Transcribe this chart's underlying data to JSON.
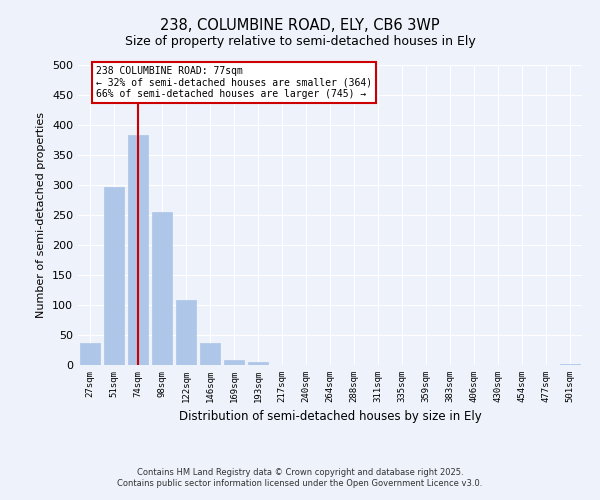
{
  "title1": "238, COLUMBINE ROAD, ELY, CB6 3WP",
  "title2": "Size of property relative to semi-detached houses in Ely",
  "xlabel": "Distribution of semi-detached houses by size in Ely",
  "ylabel": "Number of semi-detached properties",
  "bar_labels": [
    "27sqm",
    "51sqm",
    "74sqm",
    "98sqm",
    "122sqm",
    "146sqm",
    "169sqm",
    "193sqm",
    "217sqm",
    "240sqm",
    "264sqm",
    "288sqm",
    "311sqm",
    "335sqm",
    "359sqm",
    "383sqm",
    "406sqm",
    "430sqm",
    "454sqm",
    "477sqm",
    "501sqm"
  ],
  "bar_values": [
    36,
    296,
    384,
    255,
    108,
    36,
    9,
    5,
    0,
    0,
    0,
    0,
    0,
    0,
    0,
    0,
    0,
    0,
    0,
    0,
    2
  ],
  "bar_color": "#aec6e8",
  "bar_edge_color": "#aec6e8",
  "background_color": "#eef2fa",
  "grid_color": "#ffffff",
  "vline_x": 2.0,
  "vline_color": "#cc0000",
  "annotation_title": "238 COLUMBINE ROAD: 77sqm",
  "annotation_line1": "← 32% of semi-detached houses are smaller (364)",
  "annotation_line2": "66% of semi-detached houses are larger (745) →",
  "annotation_box_color": "#ffffff",
  "annotation_box_edge": "#cc0000",
  "footnote1": "Contains HM Land Registry data © Crown copyright and database right 2025.",
  "footnote2": "Contains public sector information licensed under the Open Government Licence v3.0.",
  "ylim": [
    0,
    500
  ],
  "yticks": [
    0,
    50,
    100,
    150,
    200,
    250,
    300,
    350,
    400,
    450,
    500
  ]
}
